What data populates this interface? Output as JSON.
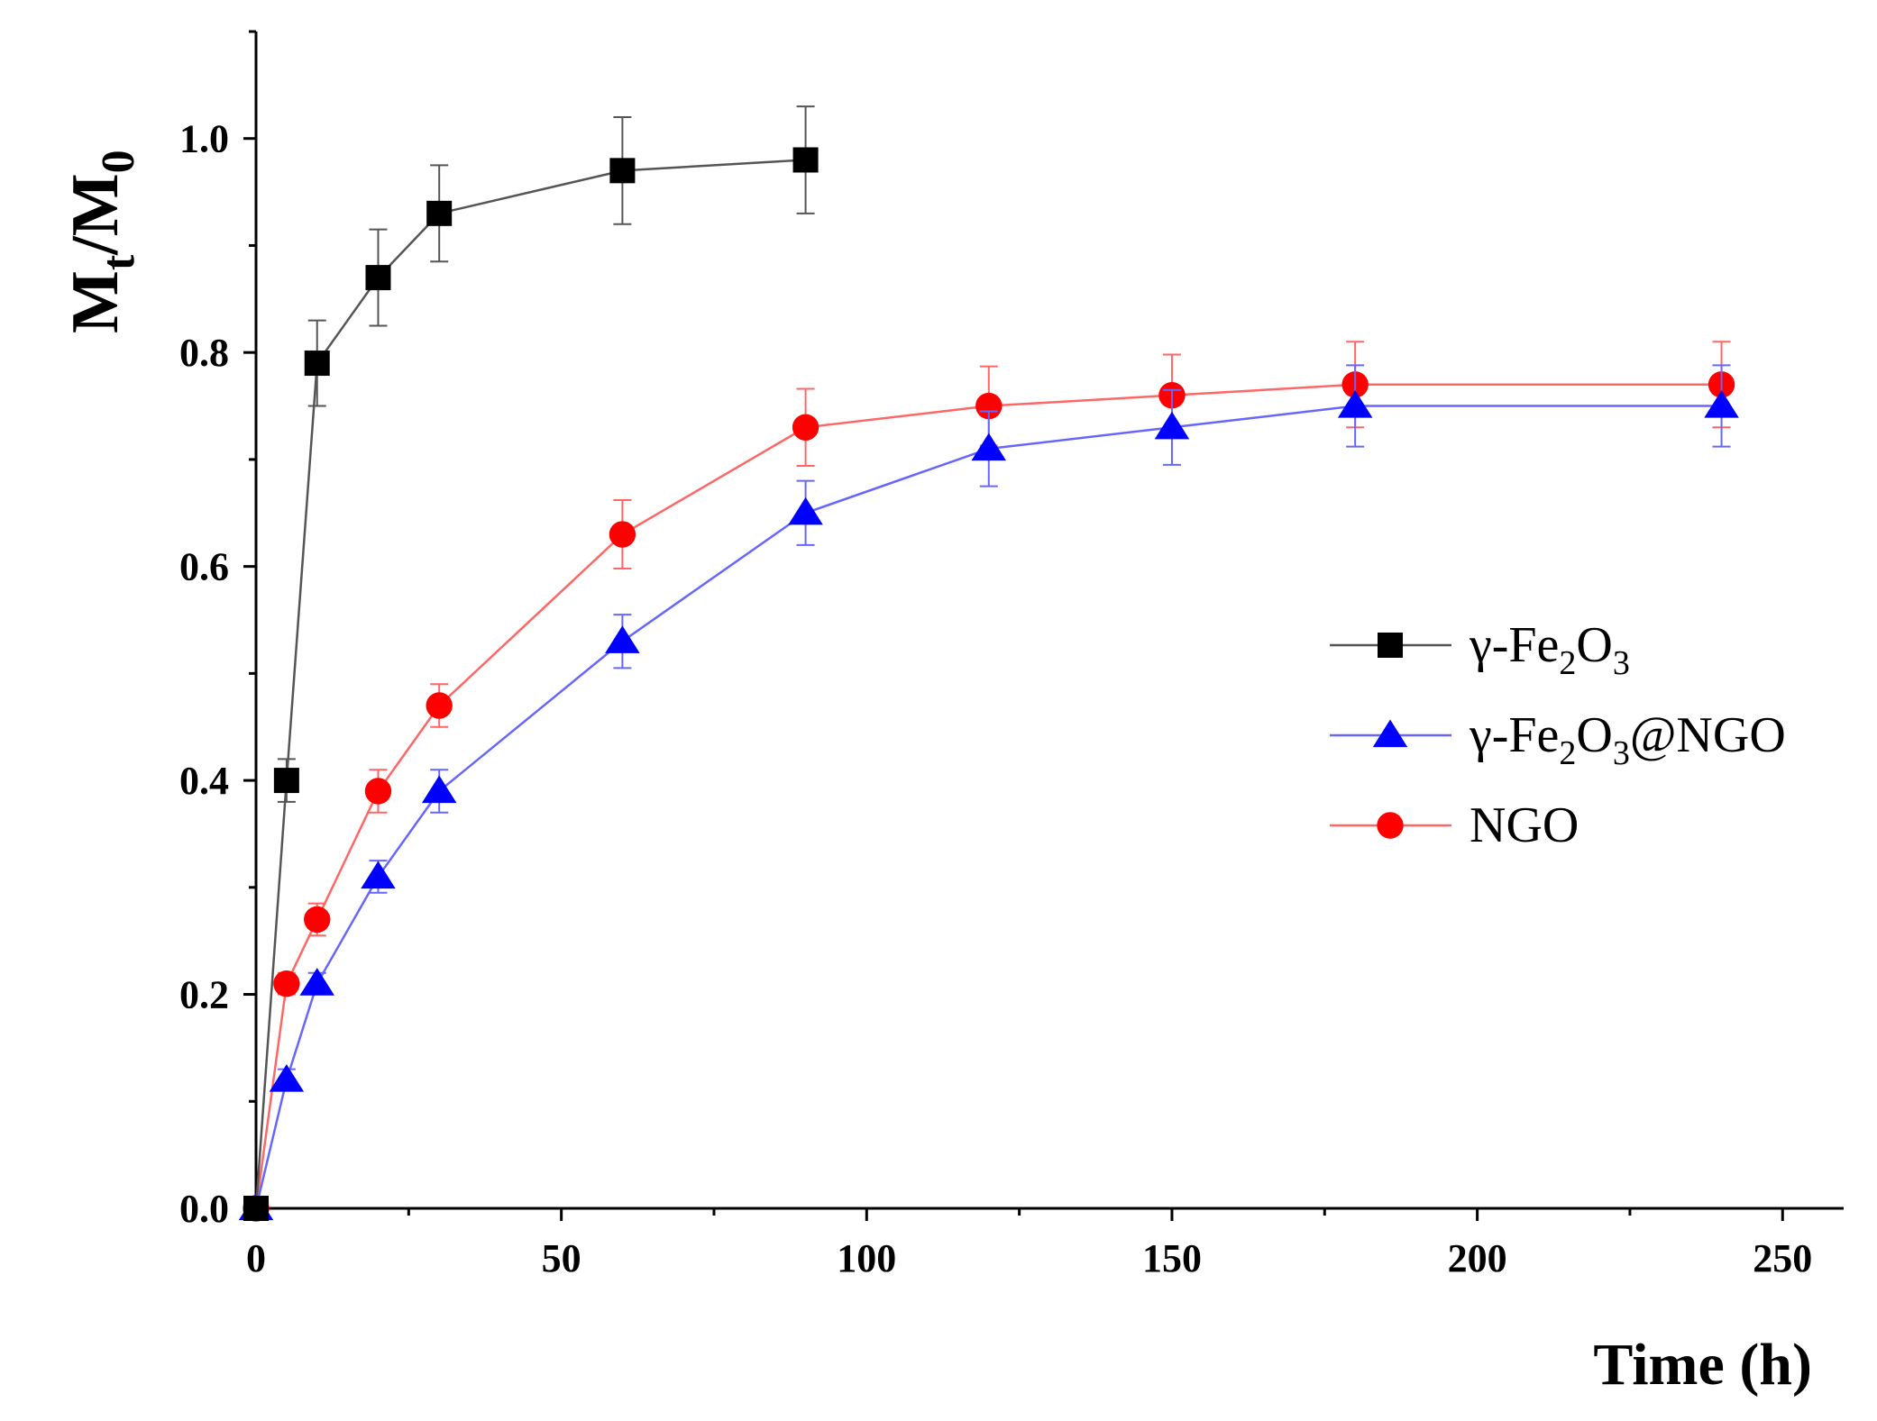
{
  "chart_data": {
    "type": "line",
    "title": "",
    "xlabel": "Time (h)",
    "ylabel": "Mt/M0",
    "ylabel_parts": {
      "main": "M",
      "sub1": "t",
      "slash": "/M",
      "sub2": "0"
    },
    "xlim": [
      0,
      260
    ],
    "ylim": [
      0.0,
      1.1
    ],
    "xticks": [
      0,
      50,
      100,
      150,
      200,
      250
    ],
    "xtick_labels": [
      "0",
      "50",
      "100",
      "150",
      "200",
      "250"
    ],
    "yticks": [
      0.0,
      0.2,
      0.4,
      0.6,
      0.8,
      1.0
    ],
    "ytick_labels": [
      "0.0",
      "0.2",
      "0.4",
      "0.6",
      "0.8",
      "1.0"
    ],
    "grid": false,
    "legend_position": "right-middle",
    "series": [
      {
        "name": "γ-Fe2O3",
        "legend_parts": [
          "γ-Fe",
          "2",
          "O",
          "3",
          ""
        ],
        "color": "#000000",
        "line_color": "#555555",
        "marker": "square",
        "x": [
          0,
          5,
          10,
          20,
          30,
          60,
          90
        ],
        "y": [
          0.0,
          0.4,
          0.79,
          0.87,
          0.93,
          0.97,
          0.98
        ],
        "err": [
          0.0,
          0.02,
          0.04,
          0.045,
          0.045,
          0.05,
          0.05
        ]
      },
      {
        "name": "γ-Fe2O3@NGO",
        "legend_parts": [
          "γ-Fe",
          "2",
          "O",
          "3",
          "@NGO"
        ],
        "color": "#0000ff",
        "line_color": "#6666ff",
        "marker": "triangle",
        "x": [
          0,
          5,
          10,
          20,
          30,
          60,
          90,
          120,
          150,
          180,
          240
        ],
        "y": [
          0.0,
          0.12,
          0.21,
          0.31,
          0.39,
          0.53,
          0.65,
          0.71,
          0.73,
          0.75,
          0.75
        ],
        "err": [
          0.0,
          0.01,
          0.01,
          0.015,
          0.02,
          0.025,
          0.03,
          0.035,
          0.035,
          0.038,
          0.038
        ]
      },
      {
        "name": "NGO",
        "legend_parts": [
          "NGO",
          "",
          "",
          "",
          ""
        ],
        "color": "#ff0000",
        "line_color": "#ff6666",
        "marker": "circle",
        "x": [
          0,
          5,
          10,
          20,
          30,
          60,
          90,
          120,
          150,
          180,
          240
        ],
        "y": [
          0.0,
          0.21,
          0.27,
          0.39,
          0.47,
          0.63,
          0.73,
          0.75,
          0.76,
          0.77,
          0.77
        ],
        "err": [
          0.0,
          0.01,
          0.015,
          0.02,
          0.02,
          0.032,
          0.036,
          0.037,
          0.038,
          0.04,
          0.04
        ]
      }
    ]
  }
}
